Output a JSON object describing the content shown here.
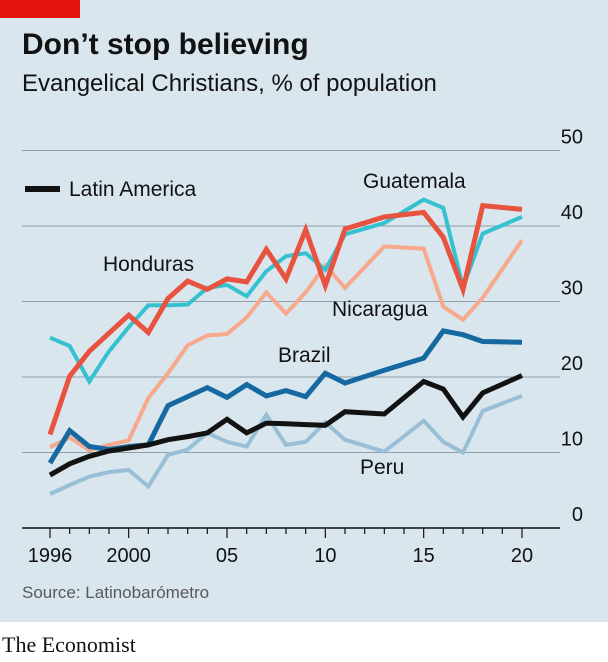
{
  "title": "Don’t stop believing",
  "subtitle": "Evangelical Christians, % of population",
  "source": "Source: Latinobarómetro",
  "brand": "The Economist",
  "chart_data": {
    "type": "line",
    "title": "Don’t stop believing",
    "subtitle": "Evangelical Christians, % of population",
    "x": [
      1996,
      1997,
      1998,
      1999,
      2000,
      2001,
      2002,
      2003,
      2004,
      2005,
      2006,
      2007,
      2008,
      2009,
      2010,
      2011,
      2013,
      2015,
      2016,
      2017,
      2018,
      2020
    ],
    "xticks": [
      1996,
      2000,
      2005,
      2010,
      2015,
      2020
    ],
    "xtick_labels": [
      "1996",
      "2000",
      "05",
      "10",
      "15",
      "20"
    ],
    "ylim": [
      0,
      50
    ],
    "yticks": [
      0,
      10,
      20,
      30,
      40,
      50
    ],
    "ytick_labels": [
      "0",
      "10",
      "20",
      "30",
      "40",
      "50"
    ],
    "y_axis_side": "right",
    "grid": "horizontal",
    "legend": {
      "label": "Latin America",
      "placement": "top-left"
    },
    "series": [
      {
        "name": "Peru",
        "color": "#98bfd6",
        "width": 4,
        "values": [
          4.5,
          5.7,
          6.8,
          7.4,
          7.7,
          5.5,
          9.7,
          10.4,
          12.6,
          11.4,
          10.8,
          15.0,
          11.0,
          11.4,
          14.0,
          11.7,
          10.1,
          14.2,
          11.4,
          10.0,
          15.5,
          17.5
        ]
      },
      {
        "name": "Nicaragua",
        "color": "#f6a98c",
        "width": 4,
        "values": [
          10.7,
          12.0,
          10.3,
          11.0,
          11.6,
          17.2,
          20.5,
          24.2,
          25.5,
          25.7,
          27.9,
          31.2,
          28.4,
          31.2,
          34.8,
          31.8,
          37.3,
          37.0,
          29.3,
          27.6,
          30.5,
          38.1
        ]
      },
      {
        "name": "Honduras",
        "color": "#36c1d0",
        "width": 4,
        "values": [
          25.2,
          24.1,
          19.4,
          23.4,
          26.6,
          29.5,
          29.5,
          29.6,
          31.8,
          32.2,
          30.7,
          34.0,
          36.0,
          36.4,
          34.2,
          38.9,
          40.4,
          43.5,
          42.4,
          31.9,
          39.0,
          41.2
        ]
      },
      {
        "name": "Brazil",
        "color": "#1568a0",
        "width": 5,
        "values": [
          8.6,
          12.9,
          10.8,
          10.4,
          10.8,
          11.0,
          16.2,
          17.4,
          18.6,
          17.3,
          19.0,
          17.5,
          18.2,
          17.4,
          20.5,
          19.2,
          20.9,
          22.5,
          26.1,
          25.6,
          24.7,
          24.6
        ]
      },
      {
        "name": "Latin America",
        "color": "#121212",
        "width": 5,
        "values": [
          7.0,
          8.5,
          9.5,
          10.2,
          10.6,
          11.0,
          11.7,
          12.1,
          12.6,
          14.4,
          12.6,
          13.9,
          13.8,
          13.7,
          13.6,
          15.4,
          15.1,
          19.4,
          18.4,
          14.7,
          17.9,
          20.2
        ]
      },
      {
        "name": "Guatemala",
        "color": "#e8533f",
        "width": 5,
        "values": [
          12.4,
          20.1,
          23.4,
          25.8,
          28.2,
          25.9,
          30.4,
          32.7,
          31.6,
          33.0,
          32.6,
          36.9,
          33.0,
          39.5,
          32.1,
          39.6,
          41.2,
          41.8,
          38.5,
          31.6,
          42.7,
          42.2
        ]
      }
    ]
  }
}
